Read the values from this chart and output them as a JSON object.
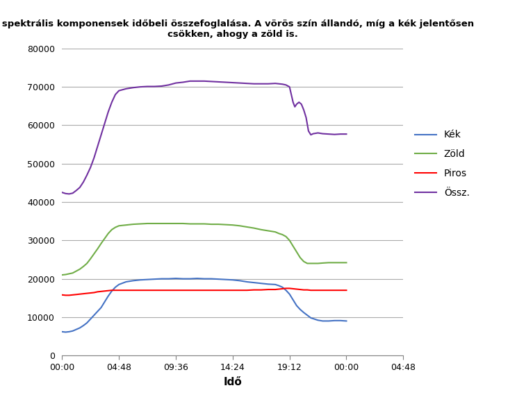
{
  "title": "A spektrális komponensek időbeli összefoglalása. A vörös szín állandó, míg a kék jelentősen\ncsökken, ahogy a zöld is.",
  "xlabel": "Idő",
  "ylim": [
    0,
    80000
  ],
  "yticks": [
    0,
    10000,
    20000,
    30000,
    40000,
    50000,
    60000,
    70000,
    80000
  ],
  "xtick_labels": [
    "00:00",
    "04:48",
    "09:36",
    "14:24",
    "19:12",
    "00:00",
    "04:48"
  ],
  "xtick_positions": [
    0,
    4.8,
    9.6,
    14.4,
    19.2,
    24.0,
    28.8
  ],
  "xlim": [
    0,
    28.8
  ],
  "legend_labels": [
    "Kék",
    "Zöld",
    "Piros",
    "Össz."
  ],
  "legend_colors": [
    "#4472C4",
    "#70AD47",
    "#FF0000",
    "#7030A0"
  ],
  "kek": {
    "x": [
      0,
      0.3,
      0.6,
      0.9,
      1.2,
      1.5,
      1.8,
      2.1,
      2.4,
      2.7,
      3.0,
      3.3,
      3.6,
      3.9,
      4.2,
      4.5,
      4.8,
      5.4,
      6.0,
      6.6,
      7.2,
      7.8,
      8.4,
      9.0,
      9.6,
      10.2,
      10.8,
      11.4,
      12.0,
      12.6,
      13.2,
      13.8,
      14.4,
      15.0,
      15.6,
      16.2,
      16.8,
      17.4,
      18.0,
      18.3,
      18.6,
      18.9,
      19.2,
      19.5,
      19.8,
      20.1,
      20.4,
      20.7,
      21.0,
      21.3,
      21.6,
      22.0,
      22.5,
      23.0,
      23.5,
      24.0
    ],
    "y": [
      6200,
      6100,
      6200,
      6400,
      6800,
      7200,
      7800,
      8500,
      9500,
      10500,
      11500,
      12500,
      14000,
      15500,
      16800,
      17800,
      18500,
      19200,
      19500,
      19700,
      19800,
      19900,
      20000,
      20000,
      20100,
      20000,
      20000,
      20100,
      20000,
      20000,
      19900,
      19800,
      19700,
      19500,
      19200,
      19000,
      18800,
      18600,
      18500,
      18200,
      17800,
      17000,
      16000,
      14500,
      13000,
      12000,
      11200,
      10500,
      9800,
      9500,
      9200,
      9000,
      9000,
      9100,
      9100,
      9000
    ]
  },
  "zold": {
    "x": [
      0,
      0.3,
      0.6,
      0.9,
      1.2,
      1.5,
      1.8,
      2.1,
      2.4,
      2.7,
      3.0,
      3.3,
      3.6,
      3.9,
      4.2,
      4.5,
      4.8,
      5.4,
      6.0,
      6.6,
      7.2,
      7.8,
      8.4,
      9.0,
      9.6,
      10.2,
      10.8,
      11.4,
      12.0,
      12.6,
      13.2,
      13.8,
      14.4,
      15.0,
      15.6,
      16.2,
      16.8,
      17.4,
      18.0,
      18.3,
      18.6,
      18.9,
      19.2,
      19.5,
      19.8,
      20.1,
      20.4,
      20.7,
      21.0,
      21.3,
      21.6,
      22.0,
      22.5,
      23.0,
      23.5,
      24.0
    ],
    "y": [
      21000,
      21100,
      21300,
      21500,
      22000,
      22500,
      23200,
      24000,
      25200,
      26500,
      27800,
      29200,
      30500,
      31800,
      32800,
      33400,
      33800,
      34000,
      34200,
      34300,
      34400,
      34400,
      34400,
      34400,
      34400,
      34400,
      34300,
      34300,
      34300,
      34200,
      34200,
      34100,
      34000,
      33800,
      33500,
      33200,
      32800,
      32500,
      32200,
      31800,
      31500,
      31000,
      30000,
      28500,
      27000,
      25500,
      24500,
      24000,
      24000,
      24000,
      24000,
      24100,
      24200,
      24200,
      24200,
      24200
    ]
  },
  "piros": {
    "x": [
      0,
      0.3,
      0.6,
      0.9,
      1.2,
      1.5,
      1.8,
      2.1,
      2.4,
      2.7,
      3.0,
      3.3,
      3.6,
      3.9,
      4.2,
      4.5,
      4.8,
      5.4,
      6.0,
      6.6,
      7.2,
      7.8,
      8.4,
      9.0,
      9.6,
      10.2,
      10.8,
      11.4,
      12.0,
      12.6,
      13.2,
      13.8,
      14.4,
      15.0,
      15.6,
      16.2,
      16.8,
      17.4,
      18.0,
      18.3,
      18.6,
      18.9,
      19.2,
      19.5,
      19.8,
      20.1,
      20.4,
      20.7,
      21.0,
      21.3,
      21.6,
      22.0,
      22.5,
      23.0,
      23.5,
      24.0
    ],
    "y": [
      15800,
      15700,
      15700,
      15800,
      15900,
      16000,
      16100,
      16200,
      16300,
      16400,
      16600,
      16700,
      16800,
      16900,
      17000,
      17000,
      17000,
      17000,
      17000,
      17000,
      17000,
      17000,
      17000,
      17000,
      17000,
      17000,
      17000,
      17000,
      17000,
      17000,
      17000,
      17000,
      17000,
      17000,
      17000,
      17100,
      17100,
      17200,
      17200,
      17300,
      17400,
      17500,
      17500,
      17400,
      17300,
      17200,
      17100,
      17100,
      17000,
      17000,
      17000,
      17000,
      17000,
      17000,
      17000,
      17000
    ]
  },
  "ossz": {
    "x": [
      0,
      0.3,
      0.6,
      0.9,
      1.2,
      1.5,
      1.8,
      2.1,
      2.4,
      2.7,
      3.0,
      3.3,
      3.6,
      3.9,
      4.2,
      4.5,
      4.8,
      5.4,
      6.0,
      6.6,
      7.2,
      7.8,
      8.4,
      9.0,
      9.6,
      10.2,
      10.8,
      11.4,
      12.0,
      12.6,
      13.2,
      13.8,
      14.4,
      15.0,
      15.6,
      16.2,
      16.8,
      17.4,
      18.0,
      18.3,
      18.6,
      18.9,
      19.2,
      19.35,
      19.5,
      19.65,
      19.8,
      20.0,
      20.2,
      20.4,
      20.6,
      20.8,
      21.0,
      21.2,
      21.4,
      21.6,
      22.0,
      22.5,
      23.0,
      23.5,
      24.0
    ],
    "y": [
      42500,
      42200,
      42100,
      42300,
      43000,
      43800,
      45200,
      47000,
      49000,
      51500,
      54500,
      57500,
      60500,
      63500,
      66000,
      68000,
      69000,
      69500,
      69800,
      70000,
      70100,
      70100,
      70200,
      70500,
      71000,
      71200,
      71500,
      71500,
      71500,
      71400,
      71300,
      71200,
      71100,
      71000,
      70900,
      70800,
      70800,
      70800,
      70900,
      70800,
      70700,
      70500,
      70000,
      68000,
      66000,
      64800,
      65500,
      66000,
      65500,
      64000,
      62000,
      58500,
      57500,
      57800,
      57900,
      58000,
      57800,
      57700,
      57600,
      57700,
      57700
    ]
  }
}
